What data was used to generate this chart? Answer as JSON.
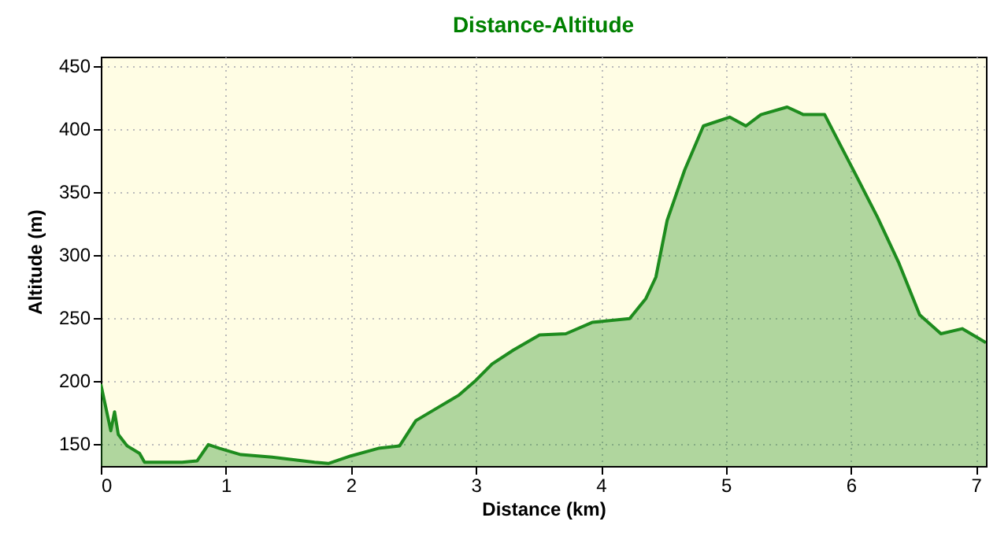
{
  "chart_data": {
    "type": "area",
    "title": "Distance-Altitude",
    "xlabel": "Distance (km)",
    "ylabel": "Altitude (m)",
    "x": [
      0,
      0.08,
      0.11,
      0.14,
      0.21,
      0.31,
      0.35,
      0.65,
      0.77,
      0.86,
      0.95,
      1.12,
      1.37,
      1.71,
      1.82,
      2.0,
      2.22,
      2.39,
      2.52,
      2.69,
      2.86,
      3.0,
      3.13,
      3.3,
      3.51,
      3.72,
      3.93,
      4.23,
      4.36,
      4.44,
      4.53,
      4.67,
      4.82,
      5.03,
      5.16,
      5.28,
      5.49,
      5.62,
      5.79,
      5.92,
      6.04,
      6.21,
      6.38,
      6.55,
      6.72,
      6.89,
      7.08
    ],
    "series": [
      {
        "color": "#1e8c1e",
        "values": [
          197,
          160,
          175,
          157,
          148,
          142,
          135,
          135,
          136,
          149,
          146,
          141,
          139,
          135,
          134,
          140,
          146,
          148,
          168,
          178,
          188,
          200,
          213,
          224,
          236,
          237,
          246,
          249,
          265,
          282,
          327,
          367,
          402,
          409,
          402,
          411,
          417,
          411,
          411,
          386,
          363,
          330,
          294,
          252,
          237,
          241,
          230
        ]
      }
    ],
    "xlim": [
      0,
      7.08
    ],
    "ylim": [
      132,
      457
    ],
    "xticks": [
      0,
      1,
      2,
      3,
      4,
      5,
      6,
      7
    ],
    "yticks": [
      150,
      200,
      250,
      300,
      350,
      400,
      450
    ],
    "grid": true
  }
}
